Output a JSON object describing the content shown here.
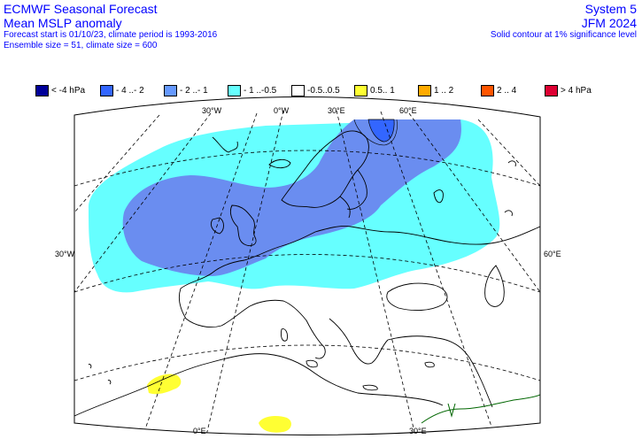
{
  "header": {
    "title": "ECMWF Seasonal Forecast",
    "subtitle": "Mean MSLP anomaly",
    "forecast_info": "Forecast start is 01/10/23, climate period is 1993-2016",
    "ensemble_info": "Ensemble size = 51, climate size = 600",
    "system": "System 5",
    "period": "JFM 2024",
    "significance_note": "Solid contour at 1% significance level"
  },
  "legend": [
    {
      "label": "< -4 hPa",
      "color": "#000099"
    },
    {
      "label": "- 4 ..- 2",
      "color": "#3366ff"
    },
    {
      "label": "- 2 ..- 1",
      "color": "#6699ff"
    },
    {
      "label": "- 1 ..-0.5",
      "color": "#66ffff"
    },
    {
      "label": "-0.5..0.5",
      "color": "#ffffff"
    },
    {
      "label": "0.5.. 1",
      "color": "#ffff33"
    },
    {
      "label": "1 .. 2",
      "color": "#ffaa00"
    },
    {
      "label": "2 .. 4",
      "color": "#ff5500"
    },
    {
      "label": "> 4 hPa",
      "color": "#dd0033"
    }
  ],
  "grid_labels": {
    "top": [
      "30°W",
      "0°W",
      "30°E",
      "60°E"
    ],
    "left": "30°W",
    "right": "60°E",
    "bottom": [
      "0°E",
      "30°E"
    ]
  },
  "colors": {
    "text": "#0000ff",
    "cyan_anomaly": "#66ffff",
    "blue_anomaly": "#6a8df0",
    "dark_blue_anomaly": "#3366ff",
    "yellow_anomaly": "#ffff33",
    "coastline": "#000000",
    "border_green": "#006600"
  }
}
